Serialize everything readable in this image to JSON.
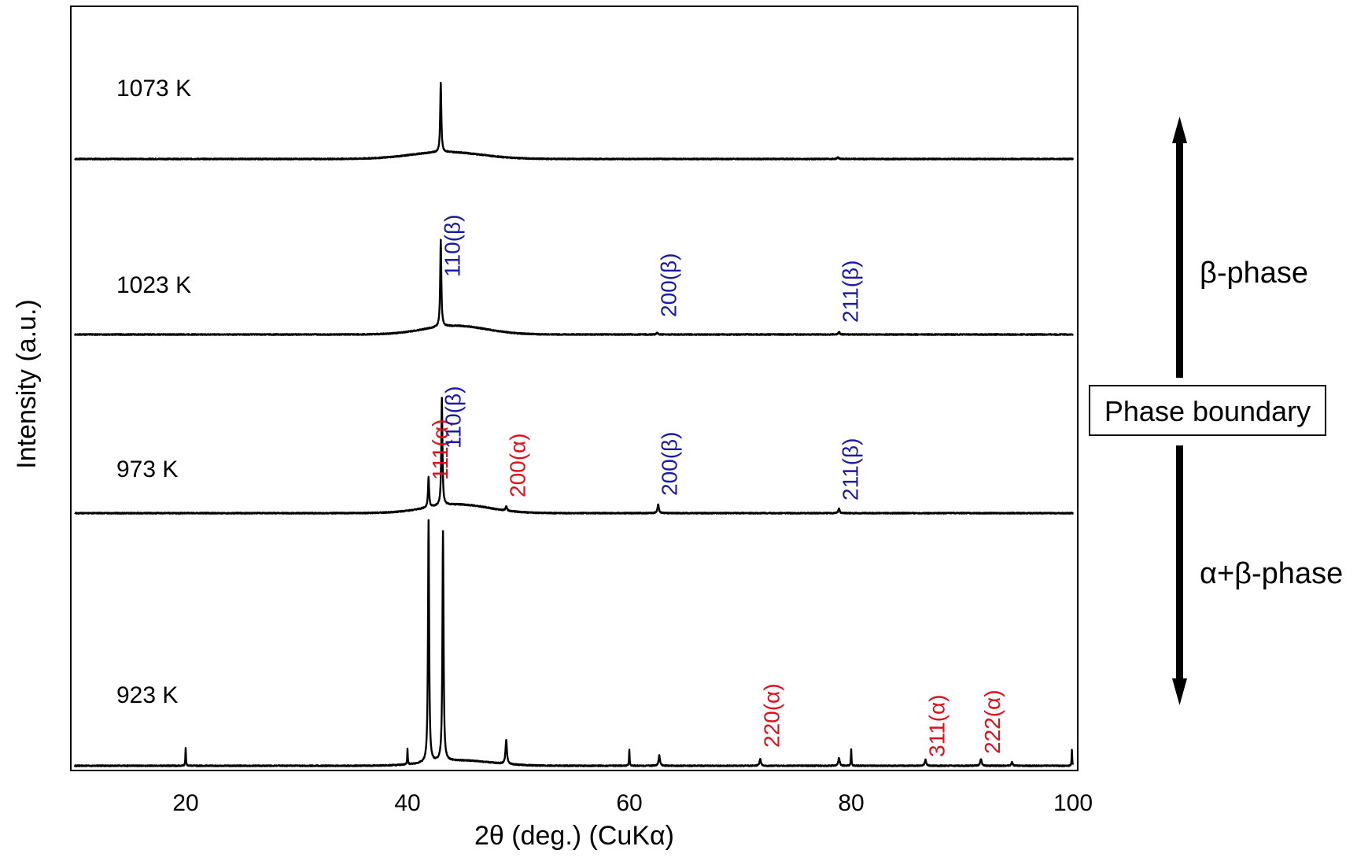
{
  "chart_data": {
    "type": "line",
    "title": "",
    "xlabel": "2θ (deg.) (CuKα)",
    "ylabel": "Intensity (a.u.)",
    "xlim": [
      10,
      100
    ],
    "x_ticks": [
      20,
      40,
      60,
      80,
      100
    ],
    "y_ticks": [],
    "grid": false,
    "colors": {
      "alpha_label": "#e0101b",
      "beta_label": "#1a1aa8",
      "trace": "#000000"
    },
    "series": [
      {
        "name": "1073 K",
        "peaks": [
          {
            "x": 43.0,
            "height": 0.8,
            "width": 0.12
          },
          {
            "x": 78.8,
            "height": 0.02,
            "width": 0.15
          }
        ],
        "hump": {
          "x": 43.5,
          "height": 0.08,
          "width": 4.5
        },
        "labels": []
      },
      {
        "name": "1023 K",
        "peaks": [
          {
            "x": 43.0,
            "height": 1.0,
            "width": 0.12
          },
          {
            "x": 62.5,
            "height": 0.02,
            "width": 0.15
          },
          {
            "x": 78.9,
            "height": 0.03,
            "width": 0.15
          }
        ],
        "hump": {
          "x": 44.3,
          "height": 0.1,
          "width": 4.0
        },
        "labels": [
          {
            "text": "110(β)",
            "x": 43.0,
            "phase": "beta"
          },
          {
            "text": "200(β)",
            "x": 62.5,
            "phase": "beta"
          },
          {
            "text": "211(β)",
            "x": 78.9,
            "phase": "beta"
          }
        ]
      },
      {
        "name": "973 K",
        "peaks": [
          {
            "x": 41.9,
            "height": 0.35,
            "width": 0.12
          },
          {
            "x": 43.1,
            "height": 1.25,
            "width": 0.12
          },
          {
            "x": 48.9,
            "height": 0.05,
            "width": 0.15
          },
          {
            "x": 62.6,
            "height": 0.1,
            "width": 0.15
          },
          {
            "x": 78.9,
            "height": 0.05,
            "width": 0.15
          }
        ],
        "hump": {
          "x": 44.5,
          "height": 0.1,
          "width": 4.0
        },
        "labels": [
          {
            "text": "111(α)",
            "x": 41.9,
            "phase": "alpha"
          },
          {
            "text": "110(β)",
            "x": 43.1,
            "phase": "beta"
          },
          {
            "text": "200(α)",
            "x": 48.9,
            "phase": "alpha"
          },
          {
            "text": "200(β)",
            "x": 62.6,
            "phase": "beta"
          },
          {
            "text": "211(β)",
            "x": 78.9,
            "phase": "beta"
          }
        ]
      },
      {
        "name": "923 K",
        "peaks": [
          {
            "x": 20.0,
            "height": 0.21,
            "width": 0.06
          },
          {
            "x": 40.0,
            "height": 0.18,
            "width": 0.06
          },
          {
            "x": 41.9,
            "height": 2.8,
            "width": 0.12
          },
          {
            "x": 43.2,
            "height": 2.65,
            "width": 0.12
          },
          {
            "x": 48.9,
            "height": 0.28,
            "width": 0.15
          },
          {
            "x": 60.0,
            "height": 0.19,
            "width": 0.06
          },
          {
            "x": 62.7,
            "height": 0.12,
            "width": 0.15
          },
          {
            "x": 71.8,
            "height": 0.08,
            "width": 0.15
          },
          {
            "x": 78.9,
            "height": 0.09,
            "width": 0.15
          },
          {
            "x": 80.0,
            "height": 0.19,
            "width": 0.06
          },
          {
            "x": 86.7,
            "height": 0.07,
            "width": 0.15
          },
          {
            "x": 91.7,
            "height": 0.08,
            "width": 0.15
          },
          {
            "x": 94.5,
            "height": 0.04,
            "width": 0.15
          },
          {
            "x": 99.9,
            "height": 0.18,
            "width": 0.06
          }
        ],
        "hump": {
          "x": 44.8,
          "height": 0.06,
          "width": 4.0
        },
        "labels": [
          {
            "text": "220(α)",
            "x": 71.8,
            "phase": "alpha"
          },
          {
            "text": "311(α)",
            "x": 86.7,
            "phase": "alpha"
          },
          {
            "text": "222(α)",
            "x": 91.7,
            "phase": "alpha"
          }
        ]
      }
    ],
    "annotations": {
      "beta_phase": "β-phase",
      "alpha_beta_phase": "α+β-phase",
      "phase_boundary": "Phase boundary"
    }
  }
}
